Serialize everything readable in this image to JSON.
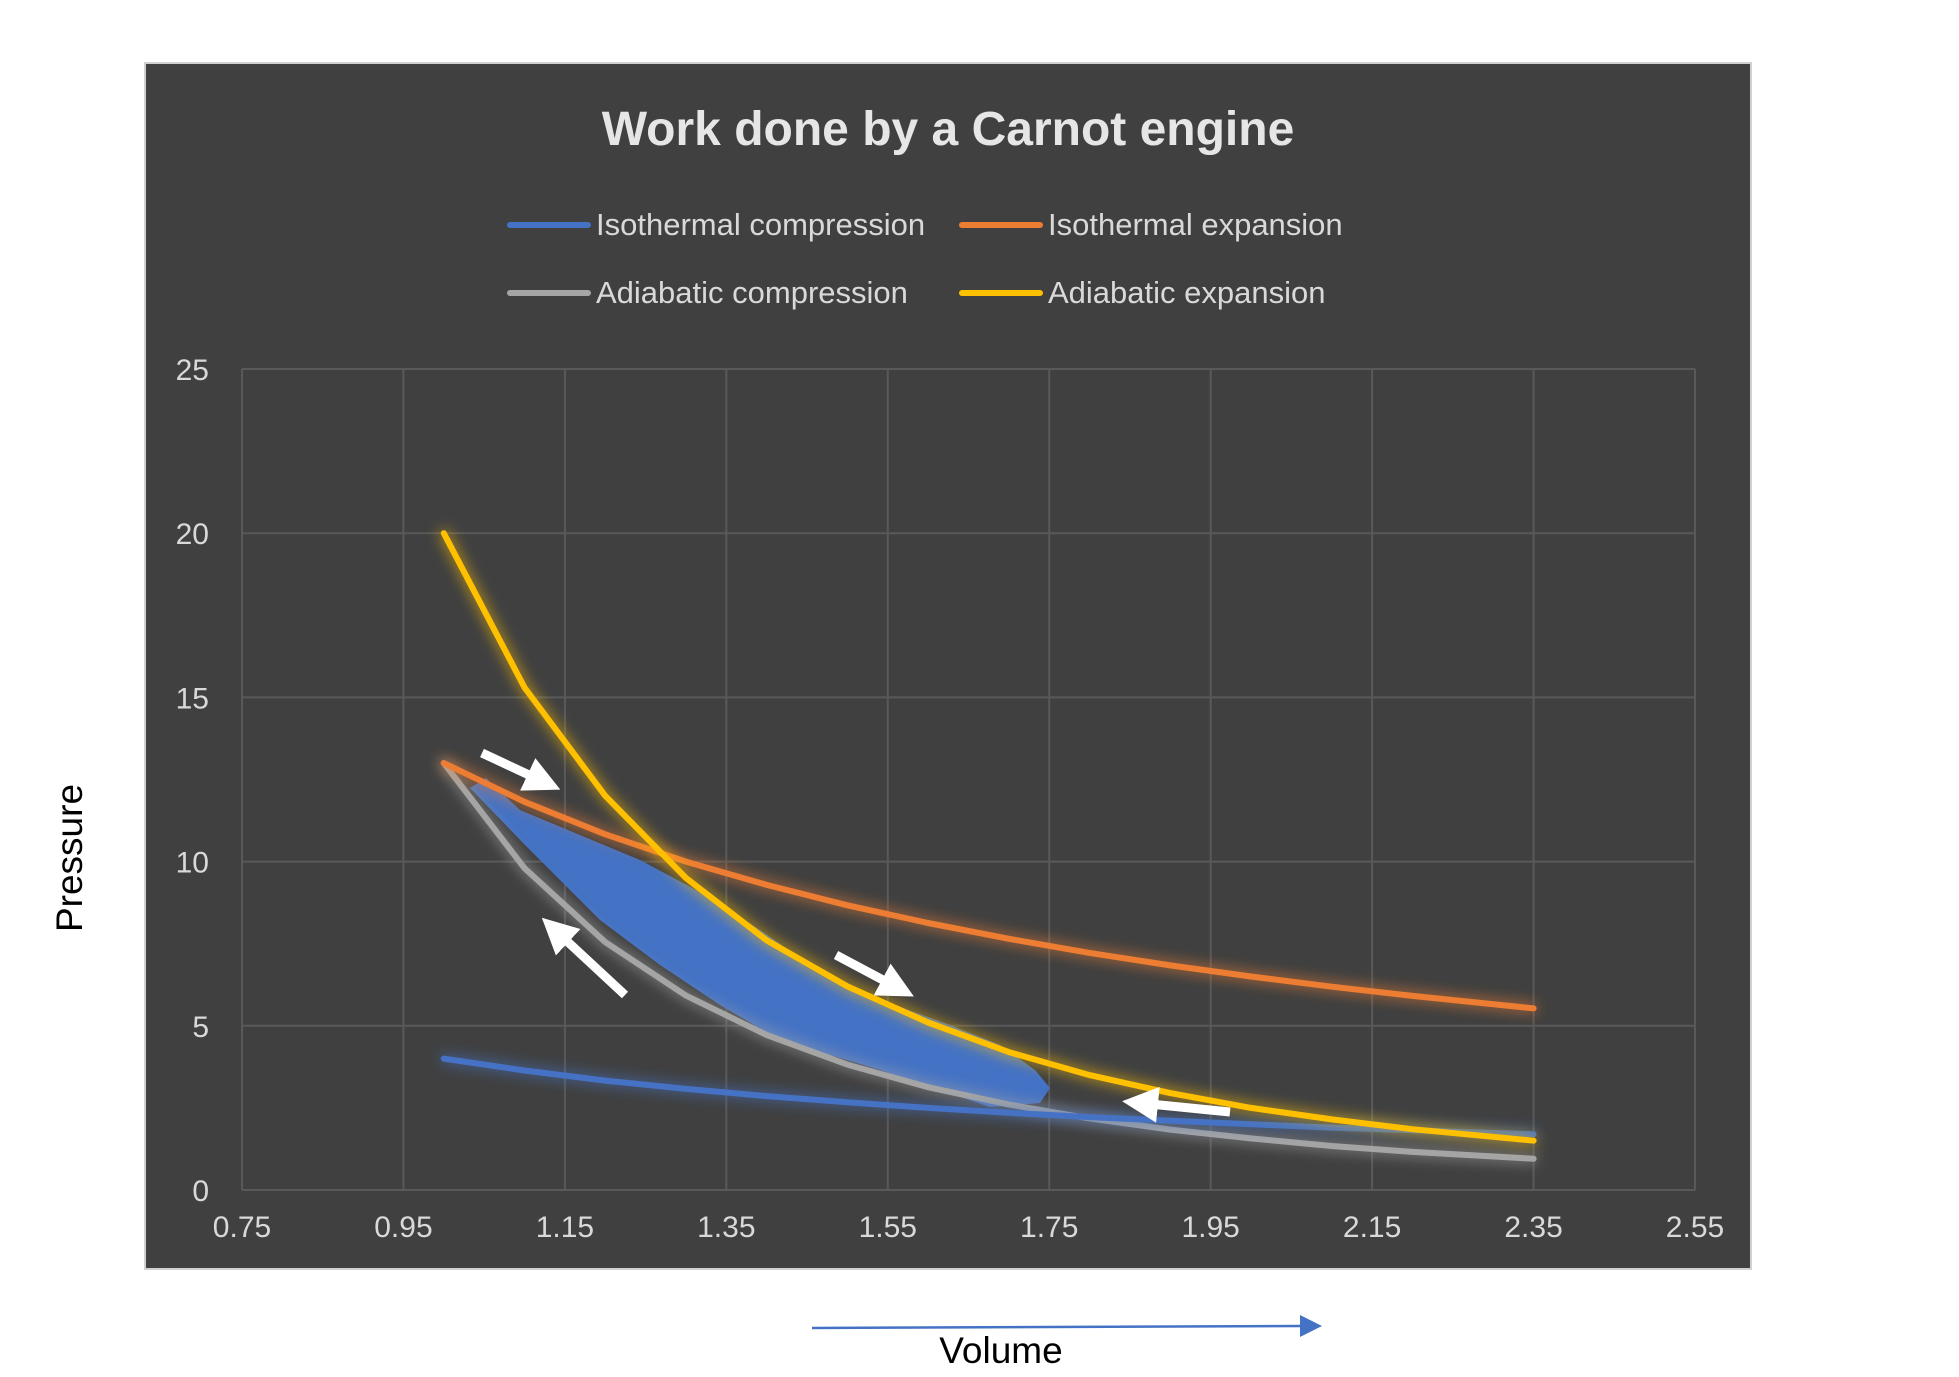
{
  "chart_data": {
    "type": "line",
    "title": "Work done by a Carnot engine",
    "xlabel": "Volume",
    "ylabel": "Pressure",
    "xlim": [
      0.75,
      2.55
    ],
    "ylim": [
      0,
      25
    ],
    "x_ticks": [
      "0.75",
      "0.95",
      "1.15",
      "1.35",
      "1.55",
      "1.75",
      "1.95",
      "2.15",
      "2.35",
      "2.55"
    ],
    "y_ticks": [
      "0",
      "5",
      "10",
      "15",
      "20",
      "25"
    ],
    "grid": true,
    "legend_position": "top",
    "background": "#404040",
    "series": [
      {
        "name": "Isothermal compression",
        "color": "#4472c4",
        "x": [
          1.0,
          1.1,
          1.2,
          1.3,
          1.4,
          1.5,
          1.6,
          1.7,
          1.8,
          1.9,
          2.0,
          2.1,
          2.2,
          2.35
        ],
        "y": [
          4.0,
          3.64,
          3.33,
          3.08,
          2.86,
          2.67,
          2.5,
          2.35,
          2.22,
          2.11,
          2.0,
          1.9,
          1.82,
          1.7
        ]
      },
      {
        "name": "Isothermal expansion",
        "color": "#ed7d31",
        "x": [
          1.0,
          1.1,
          1.2,
          1.3,
          1.4,
          1.5,
          1.6,
          1.7,
          1.8,
          1.9,
          2.0,
          2.1,
          2.2,
          2.35
        ],
        "y": [
          13.0,
          11.82,
          10.83,
          10.0,
          9.29,
          8.67,
          8.13,
          7.65,
          7.22,
          6.84,
          6.5,
          6.19,
          5.91,
          5.53
        ]
      },
      {
        "name": "Adiabatic compression",
        "color": "#a5a5a5",
        "x": [
          1.0,
          1.1,
          1.2,
          1.3,
          1.4,
          1.5,
          1.6,
          1.7,
          1.8,
          1.9,
          2.0,
          2.1,
          2.2,
          2.35
        ],
        "y": [
          13.0,
          9.8,
          7.55,
          5.92,
          4.72,
          3.82,
          3.13,
          2.6,
          2.18,
          1.84,
          1.57,
          1.34,
          1.16,
          0.95
        ]
      },
      {
        "name": "Adiabatic expansion",
        "color": "#ffc000",
        "x": [
          1.0,
          1.1,
          1.2,
          1.3,
          1.4,
          1.5,
          1.6,
          1.7,
          1.8,
          1.9,
          2.0,
          2.1,
          2.2,
          2.35
        ],
        "y": [
          20.0,
          15.3,
          12.0,
          9.5,
          7.6,
          6.2,
          5.1,
          4.2,
          3.5,
          2.95,
          2.5,
          2.15,
          1.85,
          1.5
        ]
      }
    ],
    "annotations": {
      "work_region_color": "#4472c4",
      "cycle_arrow_color": "#ffffff",
      "volume_arrow_color": "#4472c4"
    }
  }
}
